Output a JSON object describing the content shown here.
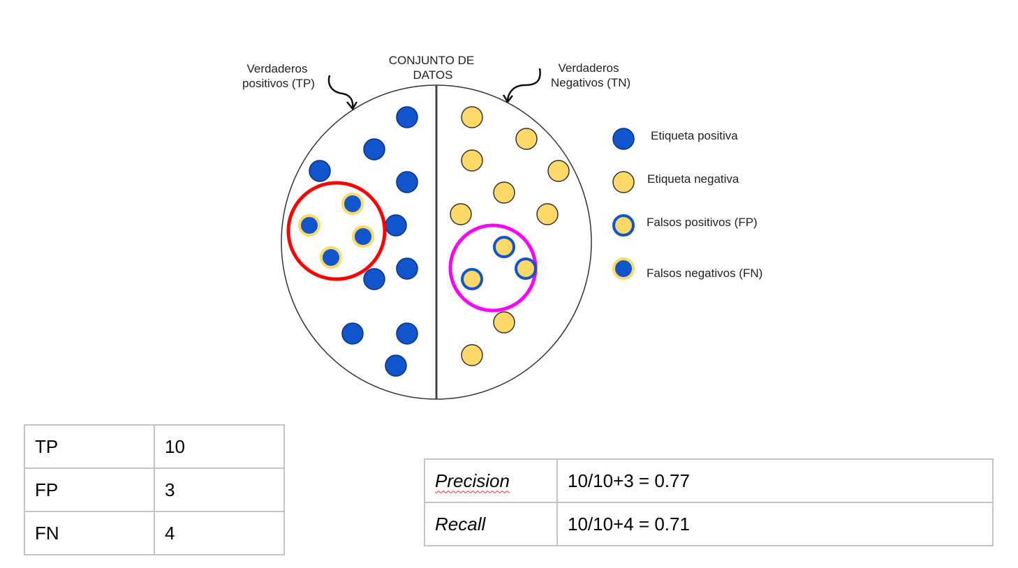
{
  "diagram": {
    "title_line1": "CONJUNTO DE",
    "title_line2": "DATOS",
    "tp_label_line1": "Verdaderos",
    "tp_label_line2": "positivos (TP)",
    "tn_label_line1": "Verdaderos",
    "tn_label_line2": "Negativos (TN)",
    "colors": {
      "positive": "#1155cc",
      "negative": "#ffd966",
      "fn_group_ring": "#ff0000",
      "fp_group_ring": "#ff00ff",
      "outline": "#333333"
    }
  },
  "legend": {
    "items": [
      {
        "label": "Etiqueta positiva",
        "icon": "positive-dot-icon"
      },
      {
        "label": "Etiqueta negativa",
        "icon": "negative-dot-icon"
      },
      {
        "label": "Falsos positivos (FP)",
        "icon": "false-positive-dot-icon"
      },
      {
        "label": "Falsos negativos (FN)",
        "icon": "false-negative-dot-icon"
      }
    ]
  },
  "counts": {
    "rows": [
      {
        "name": "TP",
        "value": "10"
      },
      {
        "name": "FP",
        "value": "3"
      },
      {
        "name": "FN",
        "value": "4"
      }
    ]
  },
  "metrics": {
    "rows": [
      {
        "name": "Precision",
        "formula": "10/10+3 = 0.77"
      },
      {
        "name": "Recall",
        "formula": "10/10+4 = 0.71"
      }
    ]
  }
}
